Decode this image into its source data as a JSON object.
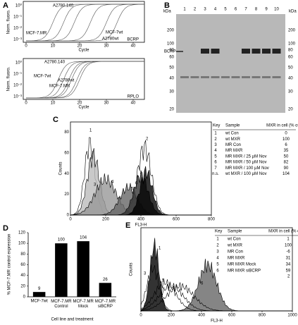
{
  "panel_a": {
    "label": "A",
    "y_label": "Norm. fluoro.",
    "x_label": "Cycle",
    "x_ticks": [
      0,
      10,
      20,
      30,
      40
    ],
    "y_ticks": [
      "10⁰",
      "10⁻¹",
      "10⁻²",
      "10⁻³"
    ],
    "top": {
      "gene": "BCRP",
      "annotations": [
        "A2780.140",
        "MCF-7.MR",
        "MCF-7wt",
        "A2780wt"
      ]
    },
    "bottom": {
      "gene": "RPLO",
      "annotations": [
        "A2780.140",
        "MCF-7wt",
        "A2780wt",
        "MCF-7.MR"
      ]
    }
  },
  "panel_b": {
    "label": "B",
    "unit": "kDa",
    "lanes": [
      "1",
      "2",
      "3",
      "4",
      "5",
      "6",
      "7",
      "8",
      "9",
      "10"
    ],
    "markers": [
      200,
      100,
      80,
      60,
      50,
      40,
      30,
      20
    ],
    "band": "BCRP"
  },
  "panel_c": {
    "label": "C",
    "x_label": "FL3-H",
    "y_label": "Counts",
    "x_ticks": [
      0,
      200,
      400,
      600,
      800
    ],
    "y_ticks": [
      0,
      20,
      40,
      60,
      80
    ],
    "curve_labels": [
      "1",
      "2",
      "3",
      "4",
      "5",
      "6",
      "7"
    ],
    "key": {
      "header": [
        "Key",
        "Sample",
        "MXR in cell (% of wt)"
      ],
      "rows": [
        [
          "1",
          "wt Con",
          "0"
        ],
        [
          "2",
          "wt MXR",
          "100"
        ],
        [
          "3",
          "MR Con",
          "6"
        ],
        [
          "4",
          "MR MXR",
          "35"
        ],
        [
          "5",
          "MR MXR / 25 µM Nov",
          "50"
        ],
        [
          "6",
          "MR MXR / 50 µM Nov",
          "82"
        ],
        [
          "7",
          "MR MXR / 100 µM Nov",
          "90"
        ],
        [
          "n.s.",
          "wt MXR / 100 µM Nov",
          "104"
        ]
      ]
    }
  },
  "panel_e": {
    "label": "E",
    "x_label": "FL3-H",
    "y_label": "Counts",
    "x_ticks": [
      0,
      200,
      400,
      600,
      800,
      1000
    ],
    "curve_labels": [
      "1",
      "2",
      "3",
      "4",
      "5",
      "6"
    ],
    "key": {
      "header": [
        "Key",
        "Sample",
        "MXR in cell (% of wt)"
      ],
      "rows": [
        [
          "1",
          "wt Con",
          "1"
        ],
        [
          "2",
          "wt MXR",
          "100"
        ],
        [
          "3",
          "MR Con",
          "-6"
        ],
        [
          "4",
          "MR MXR",
          "31"
        ],
        [
          "5",
          "MR MXR Mock",
          "34"
        ],
        [
          "6",
          "MR MXR siBCRP",
          "59"
        ]
      ]
    }
  },
  "chart_data": {
    "type": "bar",
    "panel_label": "D",
    "x_label": "Cell line and treatment",
    "y_label": "% MCF-7.MR control expression",
    "categories": [
      "MCF-7wt",
      "MCF-7.MR Control",
      "MCF-7.MR Mock",
      "MCF-7.MR siBCRP"
    ],
    "values": [
      9,
      100,
      104,
      26
    ],
    "color": "#000000",
    "ylim": [
      0,
      120
    ],
    "yticks": [
      0,
      20,
      40,
      60,
      80,
      100,
      120
    ]
  }
}
